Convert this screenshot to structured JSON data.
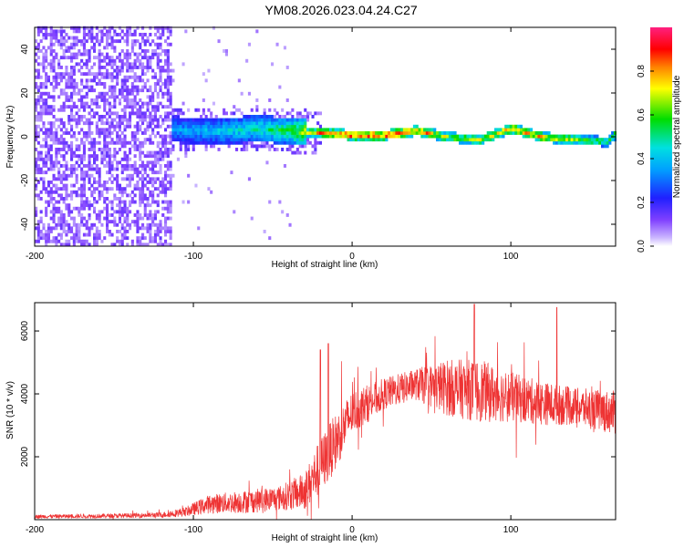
{
  "figure": {
    "title": "YM08.2026.023.04.24.C27"
  },
  "chart_data": [
    {
      "type": "heatmap",
      "name": "spectrogram",
      "xlabel": "Height of straight line (km)",
      "ylabel": "Frequency (Hz)",
      "xlim": [
        -200,
        166
      ],
      "ylim": [
        -50,
        50
      ],
      "xticks": [
        -200,
        -100,
        0,
        100
      ],
      "yticks": [
        40,
        20,
        0,
        -20,
        -40
      ],
      "colorbar": {
        "label": "Normalized spectral amplitude",
        "range": [
          0.0,
          1.0
        ],
        "ticks": [
          0.0,
          0.2,
          0.4,
          0.6,
          0.8
        ],
        "tick_labels": [
          "0.0",
          "0.2",
          "0.4",
          "0.6",
          "0.8"
        ]
      },
      "ridge": {
        "description_points_x_km": [
          -120,
          -100,
          -80,
          -60,
          -40,
          -20,
          0,
          20,
          40,
          60,
          80,
          100,
          120,
          140,
          160,
          166
        ],
        "frequency_hz": [
          3,
          2,
          2,
          3,
          2,
          1,
          0,
          0,
          2,
          -1,
          -2,
          3,
          -1,
          -2,
          -3,
          1
        ],
        "amplitude": [
          0.35,
          0.4,
          0.45,
          0.5,
          0.6,
          0.85,
          0.95,
          0.95,
          0.9,
          0.7,
          0.75,
          0.85,
          0.8,
          0.7,
          0.6,
          0.65
        ]
      },
      "noise_region_x_km": [
        -200,
        -115
      ]
    },
    {
      "type": "line",
      "name": "snr",
      "xlabel": "Height of straight line (km)",
      "ylabel": "SNR (10 * v/v)",
      "xlim": [
        -200,
        166
      ],
      "ylim": [
        0,
        6900
      ],
      "xticks": [
        -200,
        -100,
        0,
        100
      ],
      "yticks": [
        2000,
        4000,
        6000
      ],
      "color": "#ee3333",
      "envelope_x_km": [
        -200,
        -150,
        -120,
        -105,
        -90,
        -75,
        -60,
        -45,
        -30,
        -20,
        -10,
        0,
        20,
        40,
        60,
        80,
        100,
        120,
        140,
        166
      ],
      "envelope_mean": [
        100,
        120,
        150,
        250,
        500,
        550,
        600,
        700,
        900,
        1700,
        2500,
        3400,
        4000,
        4300,
        4200,
        4100,
        3900,
        3700,
        3600,
        3400
      ],
      "envelope_spread": [
        60,
        70,
        90,
        150,
        300,
        350,
        380,
        400,
        600,
        900,
        900,
        700,
        500,
        500,
        900,
        1000,
        800,
        700,
        600,
        700
      ],
      "peaks": [
        {
          "x": -15,
          "y": 5600
        },
        {
          "x": 77,
          "y": 6850
        },
        {
          "x": 129,
          "y": 6750
        },
        {
          "x": -20,
          "y": 5400
        }
      ]
    }
  ]
}
